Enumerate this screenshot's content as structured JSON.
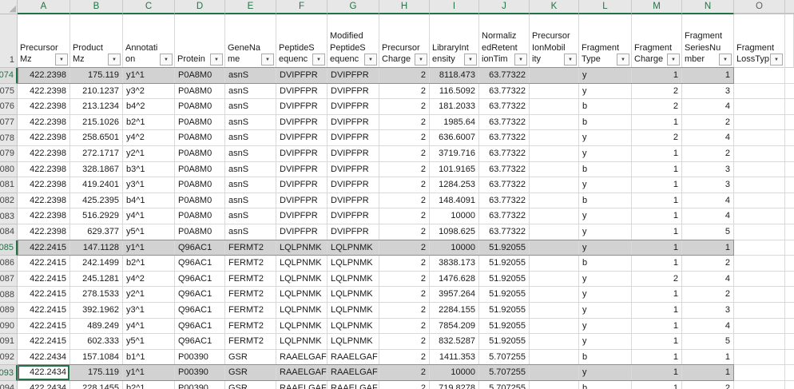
{
  "sheet": {
    "header_row_number": "1",
    "icons": {
      "filter_arrow": "▼",
      "select_all_triangle": "◢"
    },
    "colors": {
      "accent_green": "#217346",
      "selection_fill": "#d2d2d2",
      "header_bg": "#e7e7e7",
      "gridline": "#d9d9d9"
    },
    "columns": [
      {
        "letter": "A",
        "name": "precursor-mz",
        "lines": [
          "Precursor",
          "Mz"
        ],
        "align": "right",
        "in_selection": true
      },
      {
        "letter": "B",
        "name": "product-mz",
        "lines": [
          "Product",
          "Mz"
        ],
        "align": "right",
        "in_selection": true
      },
      {
        "letter": "C",
        "name": "annotation",
        "lines": [
          "Annotati",
          "on"
        ],
        "align": "left",
        "in_selection": true
      },
      {
        "letter": "D",
        "name": "protein",
        "lines": [
          "Protein"
        ],
        "align": "left",
        "in_selection": true
      },
      {
        "letter": "E",
        "name": "gene-name",
        "lines": [
          "GeneNa",
          "me"
        ],
        "align": "left",
        "in_selection": true
      },
      {
        "letter": "F",
        "name": "peptide-sequence",
        "lines": [
          "PeptideS",
          "equenc"
        ],
        "align": "left",
        "in_selection": true
      },
      {
        "letter": "G",
        "name": "modified-peptide-sequence",
        "lines": [
          "Modified",
          "PeptideS",
          "equenc"
        ],
        "align": "left",
        "in_selection": true
      },
      {
        "letter": "H",
        "name": "precursor-charge",
        "lines": [
          "Precursor",
          "Charge"
        ],
        "align": "right",
        "in_selection": true
      },
      {
        "letter": "I",
        "name": "library-intensity",
        "lines": [
          "LibraryInt",
          "ensity"
        ],
        "align": "right",
        "in_selection": true
      },
      {
        "letter": "J",
        "name": "normalized-retention-time",
        "lines": [
          "Normaliz",
          "edRetent",
          "ionTim"
        ],
        "align": "right",
        "in_selection": true
      },
      {
        "letter": "K",
        "name": "precursor-ion-mobility",
        "lines": [
          "Precursor",
          "IonMobil",
          "ity"
        ],
        "align": "left",
        "in_selection": true
      },
      {
        "letter": "L",
        "name": "fragment-type",
        "lines": [
          "Fragment",
          "Type"
        ],
        "align": "left",
        "in_selection": true
      },
      {
        "letter": "M",
        "name": "fragment-charge",
        "lines": [
          "Fragment",
          "Charge"
        ],
        "align": "right",
        "in_selection": true
      },
      {
        "letter": "N",
        "name": "fragment-series-number",
        "lines": [
          "Fragment",
          "SeriesNu",
          "mber"
        ],
        "align": "right",
        "in_selection": true
      },
      {
        "letter": "O",
        "name": "fragment-loss-type",
        "lines": [
          "Fragment",
          "LossTyp"
        ],
        "align": "left",
        "in_selection": false
      }
    ],
    "selection": {
      "selected_columns": "A:N",
      "selected_rows": [
        "9074",
        "9085",
        "9093"
      ],
      "active_cell": "A9093",
      "active_row": "9093",
      "active_col_index": 0
    },
    "rows": [
      {
        "n": "9074",
        "selected": true,
        "cells": [
          "422.2398",
          "175.119",
          "y1^1",
          "P0A8M0",
          "asnS",
          "DVIPFPR",
          "DVIPFPR",
          "2",
          "8118.473",
          "63.77322",
          "",
          "y",
          "1",
          "1",
          ""
        ]
      },
      {
        "n": "9075",
        "selected": false,
        "cells": [
          "422.2398",
          "210.1237",
          "y3^2",
          "P0A8M0",
          "asnS",
          "DVIPFPR",
          "DVIPFPR",
          "2",
          "116.5092",
          "63.77322",
          "",
          "y",
          "2",
          "3",
          ""
        ]
      },
      {
        "n": "9076",
        "selected": false,
        "cells": [
          "422.2398",
          "213.1234",
          "b4^2",
          "P0A8M0",
          "asnS",
          "DVIPFPR",
          "DVIPFPR",
          "2",
          "181.2033",
          "63.77322",
          "",
          "b",
          "2",
          "4",
          ""
        ]
      },
      {
        "n": "9077",
        "selected": false,
        "cells": [
          "422.2398",
          "215.1026",
          "b2^1",
          "P0A8M0",
          "asnS",
          "DVIPFPR",
          "DVIPFPR",
          "2",
          "1985.64",
          "63.77322",
          "",
          "b",
          "1",
          "2",
          ""
        ]
      },
      {
        "n": "9078",
        "selected": false,
        "cells": [
          "422.2398",
          "258.6501",
          "y4^2",
          "P0A8M0",
          "asnS",
          "DVIPFPR",
          "DVIPFPR",
          "2",
          "636.6007",
          "63.77322",
          "",
          "y",
          "2",
          "4",
          ""
        ]
      },
      {
        "n": "9079",
        "selected": false,
        "cells": [
          "422.2398",
          "272.1717",
          "y2^1",
          "P0A8M0",
          "asnS",
          "DVIPFPR",
          "DVIPFPR",
          "2",
          "3719.716",
          "63.77322",
          "",
          "y",
          "1",
          "2",
          ""
        ]
      },
      {
        "n": "9080",
        "selected": false,
        "cells": [
          "422.2398",
          "328.1867",
          "b3^1",
          "P0A8M0",
          "asnS",
          "DVIPFPR",
          "DVIPFPR",
          "2",
          "101.9165",
          "63.77322",
          "",
          "b",
          "1",
          "3",
          ""
        ]
      },
      {
        "n": "9081",
        "selected": false,
        "cells": [
          "422.2398",
          "419.2401",
          "y3^1",
          "P0A8M0",
          "asnS",
          "DVIPFPR",
          "DVIPFPR",
          "2",
          "1284.253",
          "63.77322",
          "",
          "y",
          "1",
          "3",
          ""
        ]
      },
      {
        "n": "9082",
        "selected": false,
        "cells": [
          "422.2398",
          "425.2395",
          "b4^1",
          "P0A8M0",
          "asnS",
          "DVIPFPR",
          "DVIPFPR",
          "2",
          "148.4091",
          "63.77322",
          "",
          "b",
          "1",
          "4",
          ""
        ]
      },
      {
        "n": "9083",
        "selected": false,
        "cells": [
          "422.2398",
          "516.2929",
          "y4^1",
          "P0A8M0",
          "asnS",
          "DVIPFPR",
          "DVIPFPR",
          "2",
          "10000",
          "63.77322",
          "",
          "y",
          "1",
          "4",
          ""
        ]
      },
      {
        "n": "9084",
        "selected": false,
        "cells": [
          "422.2398",
          "629.377",
          "y5^1",
          "P0A8M0",
          "asnS",
          "DVIPFPR",
          "DVIPFPR",
          "2",
          "1098.625",
          "63.77322",
          "",
          "y",
          "1",
          "5",
          ""
        ]
      },
      {
        "n": "9085",
        "selected": true,
        "cells": [
          "422.2415",
          "147.1128",
          "y1^1",
          "Q96AC1",
          "FERMT2",
          "LQLPNMK",
          "LQLPNMK",
          "2",
          "10000",
          "51.92055",
          "",
          "y",
          "1",
          "1",
          ""
        ]
      },
      {
        "n": "9086",
        "selected": false,
        "cells": [
          "422.2415",
          "242.1499",
          "b2^1",
          "Q96AC1",
          "FERMT2",
          "LQLPNMK",
          "LQLPNMK",
          "2",
          "3838.173",
          "51.92055",
          "",
          "b",
          "1",
          "2",
          ""
        ]
      },
      {
        "n": "9087",
        "selected": false,
        "cells": [
          "422.2415",
          "245.1281",
          "y4^2",
          "Q96AC1",
          "FERMT2",
          "LQLPNMK",
          "LQLPNMK",
          "2",
          "1476.628",
          "51.92055",
          "",
          "y",
          "2",
          "4",
          ""
        ]
      },
      {
        "n": "9088",
        "selected": false,
        "cells": [
          "422.2415",
          "278.1533",
          "y2^1",
          "Q96AC1",
          "FERMT2",
          "LQLPNMK",
          "LQLPNMK",
          "2",
          "3957.264",
          "51.92055",
          "",
          "y",
          "1",
          "2",
          ""
        ]
      },
      {
        "n": "9089",
        "selected": false,
        "cells": [
          "422.2415",
          "392.1962",
          "y3^1",
          "Q96AC1",
          "FERMT2",
          "LQLPNMK",
          "LQLPNMK",
          "2",
          "2284.155",
          "51.92055",
          "",
          "y",
          "1",
          "3",
          ""
        ]
      },
      {
        "n": "9090",
        "selected": false,
        "cells": [
          "422.2415",
          "489.249",
          "y4^1",
          "Q96AC1",
          "FERMT2",
          "LQLPNMK",
          "LQLPNMK",
          "2",
          "7854.209",
          "51.92055",
          "",
          "y",
          "1",
          "4",
          ""
        ]
      },
      {
        "n": "9091",
        "selected": false,
        "cells": [
          "422.2415",
          "602.333",
          "y5^1",
          "Q96AC1",
          "FERMT2",
          "LQLPNMK",
          "LQLPNMK",
          "2",
          "832.5287",
          "51.92055",
          "",
          "y",
          "1",
          "5",
          ""
        ]
      },
      {
        "n": "9092",
        "selected": false,
        "cells": [
          "422.2434",
          "157.1084",
          "b1^1",
          "P00390",
          "GSR",
          "RAAELGAF",
          "RAAELGAF",
          "2",
          "1411.353",
          "5.707255",
          "",
          "b",
          "1",
          "1",
          ""
        ]
      },
      {
        "n": "9093",
        "selected": true,
        "cells": [
          "422.2434",
          "175.119",
          "y1^1",
          "P00390",
          "GSR",
          "RAAELGAF",
          "RAAELGAF",
          "2",
          "10000",
          "5.707255",
          "",
          "y",
          "1",
          "1",
          ""
        ]
      },
      {
        "n": "9094",
        "selected": false,
        "cells": [
          "422.2434",
          "228.1455",
          "b2^1",
          "P00390",
          "GSR",
          "RAAELGAF",
          "RAAELGAF",
          "2",
          "719.8278",
          "5.707255",
          "",
          "b",
          "1",
          "2",
          ""
        ]
      }
    ]
  }
}
